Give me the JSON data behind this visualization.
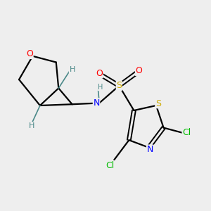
{
  "bg_color": "#eeeeee",
  "atom_colors": {
    "H": "#4a8888",
    "N": "#0000ff",
    "O": "#ff0000",
    "S": "#ccaa00",
    "Cl": "#00bb00"
  },
  "bond_color": "#000000",
  "figsize": [
    3.0,
    3.0
  ],
  "dpi": 100
}
